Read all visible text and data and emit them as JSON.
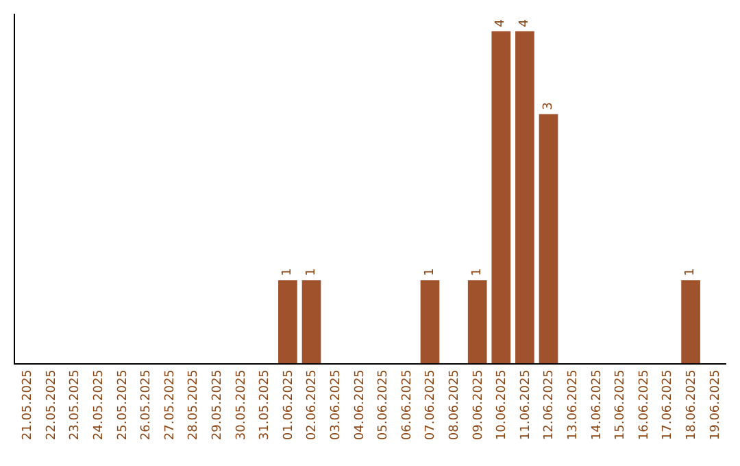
{
  "chart_data": {
    "type": "bar",
    "categories": [
      "21.05.2025",
      "22.05.2025",
      "23.05.2025",
      "24.05.2025",
      "25.05.2025",
      "26.05.2025",
      "27.05.2025",
      "28.05.2025",
      "29.05.2025",
      "30.05.2025",
      "31.05.2025",
      "01.06.2025",
      "02.06.2025",
      "03.06.2025",
      "04.06.2025",
      "05.06.2025",
      "06.06.2025",
      "07.06.2025",
      "08.06.2025",
      "09.06.2025",
      "10.06.2025",
      "11.06.2025",
      "12.06.2025",
      "13.06.2025",
      "14.06.2025",
      "15.06.2025",
      "16.06.2025",
      "17.06.2025",
      "18.06.2025",
      "19.06.2025"
    ],
    "values": [
      0,
      0,
      0,
      0,
      0,
      0,
      0,
      0,
      0,
      0,
      0,
      1,
      1,
      0,
      0,
      0,
      0,
      1,
      0,
      1,
      4,
      4,
      3,
      0,
      0,
      0,
      0,
      0,
      1,
      0
    ],
    "value_labels": [
      null,
      null,
      null,
      null,
      null,
      null,
      null,
      null,
      null,
      null,
      null,
      "1",
      "1",
      null,
      null,
      null,
      null,
      "1",
      null,
      "1",
      "4",
      "4",
      "3",
      null,
      null,
      null,
      null,
      null,
      "1",
      null
    ],
    "color": "#a0522d",
    "grid": false,
    "tick_labels": "x"
  }
}
